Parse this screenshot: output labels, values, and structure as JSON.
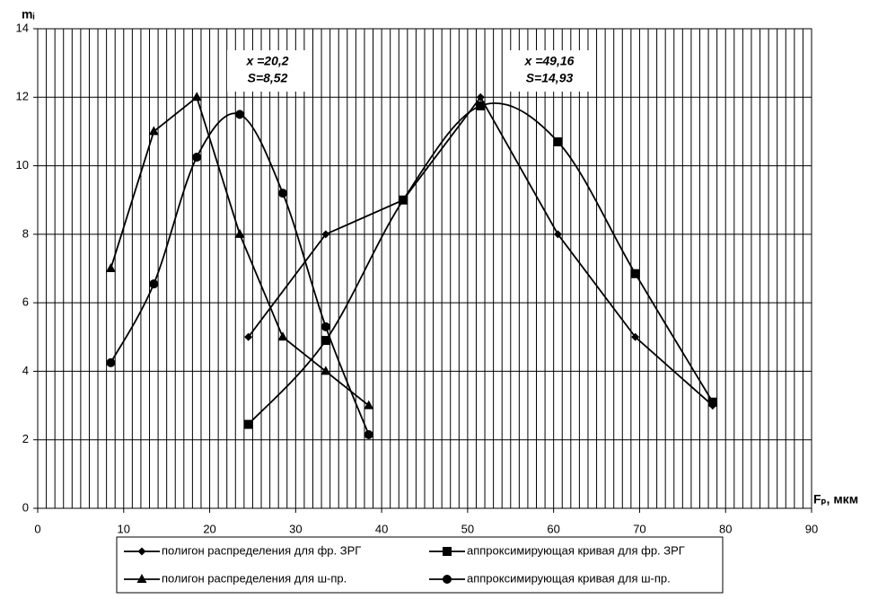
{
  "chart_data": {
    "type": "line",
    "x_label": "Fₚ, мкм",
    "y_label": "mᵢ",
    "annotations": [
      {
        "lines": [
          "x =20,2",
          "S=8,52"
        ]
      },
      {
        "lines": [
          "x =49,16",
          "S=14,93"
        ]
      }
    ],
    "series": [
      {
        "name": "полигон распределения для фр. ЗРГ",
        "color": "#000000",
        "marker": "diamond",
        "smooth": false,
        "x": [
          24.5,
          33.5,
          42.5,
          51.5,
          60.5,
          69.5,
          78.5
        ],
        "values": [
          5,
          8,
          9,
          12,
          8,
          5,
          3
        ]
      },
      {
        "name": "аппроксимирующая кривая для фр. ЗРГ",
        "color": "#000000",
        "marker": "square",
        "smooth": true,
        "x": [
          24.5,
          33.5,
          42.5,
          51.5,
          60.5,
          69.5,
          78.5
        ],
        "values": [
          2.45,
          4.9,
          9.0,
          11.75,
          10.7,
          6.85,
          3.1
        ]
      },
      {
        "name": "полигон распределения для ш-пр.",
        "color": "#000000",
        "marker": "triangle",
        "smooth": false,
        "x": [
          8.5,
          13.5,
          18.5,
          23.5,
          28.5,
          33.5,
          38.5
        ],
        "values": [
          7,
          11,
          12,
          8,
          5,
          4,
          3
        ]
      },
      {
        "name": "аппроксимирующая кривая для ш-пр.",
        "color": "#000000",
        "marker": "circle",
        "smooth": true,
        "x": [
          8.5,
          13.5,
          18.5,
          23.5,
          28.5,
          33.5,
          38.5
        ],
        "values": [
          4.25,
          6.55,
          10.25,
          11.5,
          9.2,
          5.3,
          2.15
        ]
      }
    ],
    "xlim": [
      0,
      90
    ],
    "xticks": [
      0,
      10,
      20,
      30,
      40,
      50,
      60,
      70,
      80,
      90
    ],
    "ylim": [
      0,
      14
    ],
    "yticks": [
      0,
      2,
      4,
      6,
      8,
      10,
      12,
      14
    ],
    "x_minor_step": 1,
    "grid": true,
    "legend": "bottom"
  }
}
